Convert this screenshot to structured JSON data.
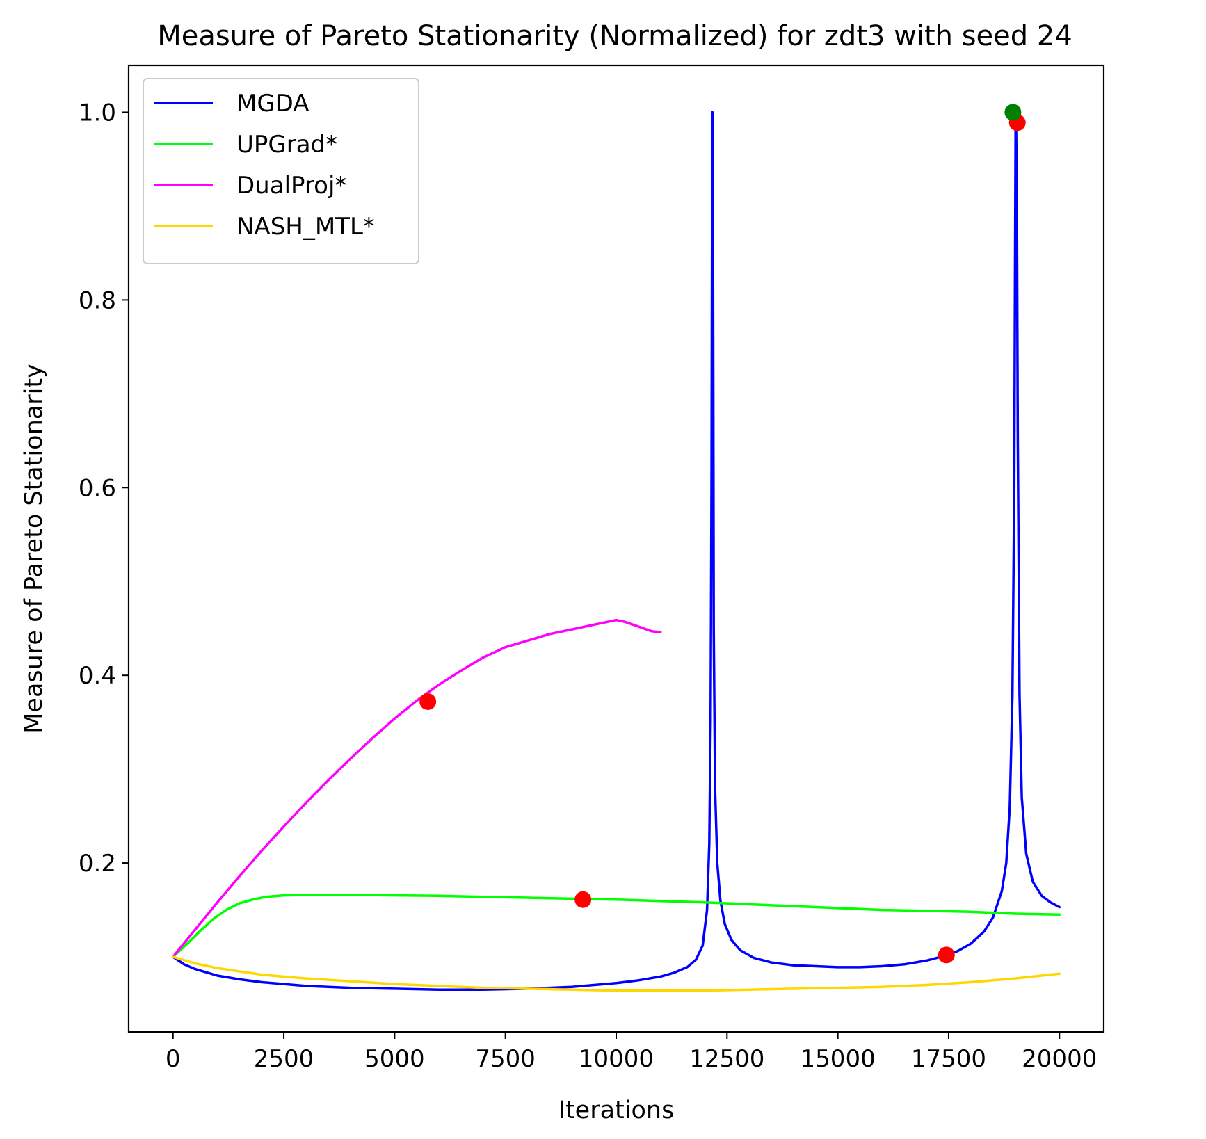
{
  "chart_data": {
    "type": "line",
    "title": "Measure of Pareto Stationarity (Normalized) for zdt3 with seed 24",
    "xlabel": "Iterations",
    "ylabel": "Measure of Pareto Stationarity",
    "xlim": [
      -1000,
      21000
    ],
    "ylim": [
      0.02,
      1.05
    ],
    "xticks": [
      0,
      2500,
      5000,
      7500,
      10000,
      12500,
      15000,
      17500,
      20000
    ],
    "yticks": [
      0.2,
      0.4,
      0.6,
      0.8,
      1.0
    ],
    "xtick_labels": [
      "0",
      "2500",
      "5000",
      "7500",
      "10000",
      "12500",
      "15000",
      "17500",
      "20000"
    ],
    "ytick_labels": [
      "0.2",
      "0.4",
      "0.6",
      "0.8",
      "1.0"
    ],
    "grid": false,
    "legend_position": "top-left",
    "series": [
      {
        "name": "MGDA",
        "color": "#0000ff",
        "x": [
          0,
          250,
          500,
          1000,
          1500,
          2000,
          3000,
          4000,
          5000,
          6000,
          7000,
          8000,
          9000,
          9500,
          10000,
          10500,
          11000,
          11300,
          11600,
          11800,
          11950,
          12050,
          12100,
          12130,
          12150,
          12160,
          12170,
          12180,
          12190,
          12200,
          12230,
          12280,
          12350,
          12450,
          12600,
          12800,
          13100,
          13500,
          14000,
          14500,
          15000,
          15500,
          16000,
          16500,
          17000,
          17400,
          17700,
          18000,
          18300,
          18500,
          18700,
          18800,
          18880,
          18940,
          18980,
          19000,
          19010,
          19020,
          19040,
          19060,
          19100,
          19150,
          19250,
          19400,
          19600,
          19800,
          20000
        ],
        "y": [
          0.1,
          0.092,
          0.087,
          0.08,
          0.076,
          0.073,
          0.069,
          0.067,
          0.066,
          0.065,
          0.065,
          0.066,
          0.068,
          0.07,
          0.072,
          0.075,
          0.079,
          0.083,
          0.089,
          0.097,
          0.112,
          0.15,
          0.22,
          0.35,
          0.6,
          0.85,
          1.0,
          0.95,
          0.7,
          0.45,
          0.28,
          0.2,
          0.16,
          0.135,
          0.118,
          0.107,
          0.099,
          0.094,
          0.091,
          0.09,
          0.089,
          0.089,
          0.09,
          0.092,
          0.096,
          0.101,
          0.106,
          0.114,
          0.127,
          0.142,
          0.17,
          0.2,
          0.26,
          0.38,
          0.6,
          0.85,
          0.98,
          1.0,
          0.9,
          0.65,
          0.38,
          0.27,
          0.21,
          0.18,
          0.165,
          0.158,
          0.153
        ]
      },
      {
        "name": "UPGrad*",
        "color": "#00ff00",
        "x": [
          0,
          300,
          600,
          900,
          1200,
          1500,
          1800,
          2100,
          2500,
          3000,
          3500,
          4000,
          5000,
          6000,
          7000,
          8000,
          9000,
          10000,
          11000,
          12000,
          13000,
          14000,
          15000,
          16000,
          17000,
          18000,
          19000,
          20000
        ],
        "y": [
          0.1,
          0.113,
          0.127,
          0.14,
          0.15,
          0.157,
          0.161,
          0.164,
          0.1655,
          0.166,
          0.1662,
          0.1662,
          0.1655,
          0.165,
          0.164,
          0.163,
          0.162,
          0.161,
          0.1595,
          0.158,
          0.156,
          0.154,
          0.152,
          0.15,
          0.149,
          0.148,
          0.146,
          0.145
        ]
      },
      {
        "name": "DualProj*",
        "color": "#ff00ff",
        "x": [
          0,
          500,
          1000,
          1500,
          2000,
          2500,
          3000,
          3500,
          4000,
          4500,
          5000,
          5500,
          6000,
          6500,
          7000,
          7500,
          8000,
          8500,
          9000,
          9500,
          10000,
          10200,
          10500,
          10800,
          11000
        ],
        "y": [
          0.1,
          0.129,
          0.158,
          0.186,
          0.213,
          0.239,
          0.264,
          0.288,
          0.311,
          0.333,
          0.354,
          0.373,
          0.39,
          0.405,
          0.419,
          0.43,
          0.437,
          0.444,
          0.449,
          0.454,
          0.459,
          0.457,
          0.452,
          0.447,
          0.446
        ]
      },
      {
        "name": "NASH_MTL*",
        "color": "#ffd700",
        "x": [
          0,
          500,
          1000,
          2000,
          3000,
          4000,
          5000,
          6000,
          7000,
          8000,
          9000,
          10000,
          11000,
          12000,
          13000,
          14000,
          15000,
          16000,
          17000,
          18000,
          19000,
          20000
        ],
        "y": [
          0.1,
          0.093,
          0.088,
          0.081,
          0.077,
          0.074,
          0.071,
          0.069,
          0.067,
          0.066,
          0.065,
          0.064,
          0.064,
          0.064,
          0.065,
          0.066,
          0.067,
          0.068,
          0.07,
          0.073,
          0.077,
          0.082
        ]
      }
    ],
    "markers": [
      {
        "series": "DualProj*",
        "x": 5750,
        "y": 0.372,
        "color": "#ff0000"
      },
      {
        "series": "UPGrad*",
        "x": 9250,
        "y": 0.161,
        "color": "#ff0000"
      },
      {
        "series": "MGDA",
        "x": 17450,
        "y": 0.102,
        "color": "#ff0000"
      },
      {
        "series": "MGDA",
        "x": 19050,
        "y": 0.989,
        "color": "#ff0000"
      },
      {
        "series": "MGDA",
        "x": 18950,
        "y": 1.0,
        "color": "#008000"
      }
    ]
  }
}
